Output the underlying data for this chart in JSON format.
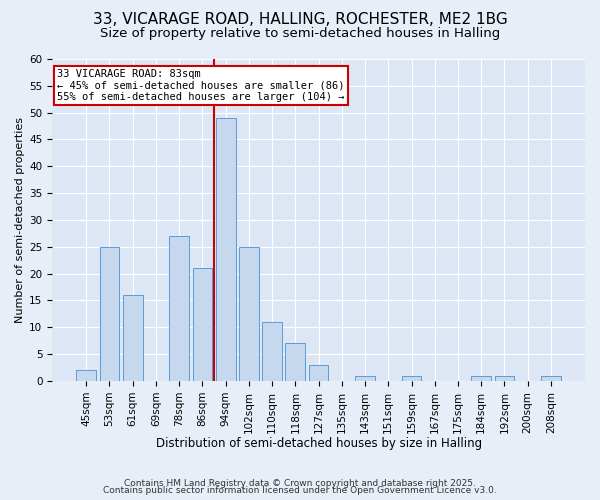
{
  "title1": "33, VICARAGE ROAD, HALLING, ROCHESTER, ME2 1BG",
  "title2": "Size of property relative to semi-detached houses in Halling",
  "xlabel": "Distribution of semi-detached houses by size in Halling",
  "ylabel": "Number of semi-detached properties",
  "categories": [
    "45sqm",
    "53sqm",
    "61sqm",
    "69sqm",
    "78sqm",
    "86sqm",
    "94sqm",
    "102sqm",
    "110sqm",
    "118sqm",
    "127sqm",
    "135sqm",
    "143sqm",
    "151sqm",
    "159sqm",
    "167sqm",
    "175sqm",
    "184sqm",
    "192sqm",
    "200sqm",
    "208sqm"
  ],
  "values": [
    2,
    25,
    16,
    0,
    27,
    21,
    49,
    25,
    11,
    7,
    3,
    0,
    1,
    0,
    1,
    0,
    0,
    1,
    1,
    0,
    1
  ],
  "bar_color": "#c5d8ed",
  "bar_edge_color": "#5b9bd5",
  "vline_color": "#cc0000",
  "vline_x": 5.5,
  "annotation_title": "33 VICARAGE ROAD: 83sqm",
  "annotation_line1": "← 45% of semi-detached houses are smaller (86)",
  "annotation_line2": "55% of semi-detached houses are larger (104) →",
  "annotation_box_color": "#ffffff",
  "annotation_box_edge_color": "#cc0000",
  "ylim": [
    0,
    60
  ],
  "yticks": [
    0,
    5,
    10,
    15,
    20,
    25,
    30,
    35,
    40,
    45,
    50,
    55,
    60
  ],
  "background_color": "#e8eef7",
  "plot_background_color": "#dce6f5",
  "footer1": "Contains HM Land Registry data © Crown copyright and database right 2025.",
  "footer2": "Contains public sector information licensed under the Open Government Licence v3.0.",
  "title1_fontsize": 11,
  "title2_fontsize": 9.5,
  "xlabel_fontsize": 8.5,
  "ylabel_fontsize": 8,
  "tick_fontsize": 7.5,
  "annotation_fontsize": 7.5,
  "footer_fontsize": 6.5
}
